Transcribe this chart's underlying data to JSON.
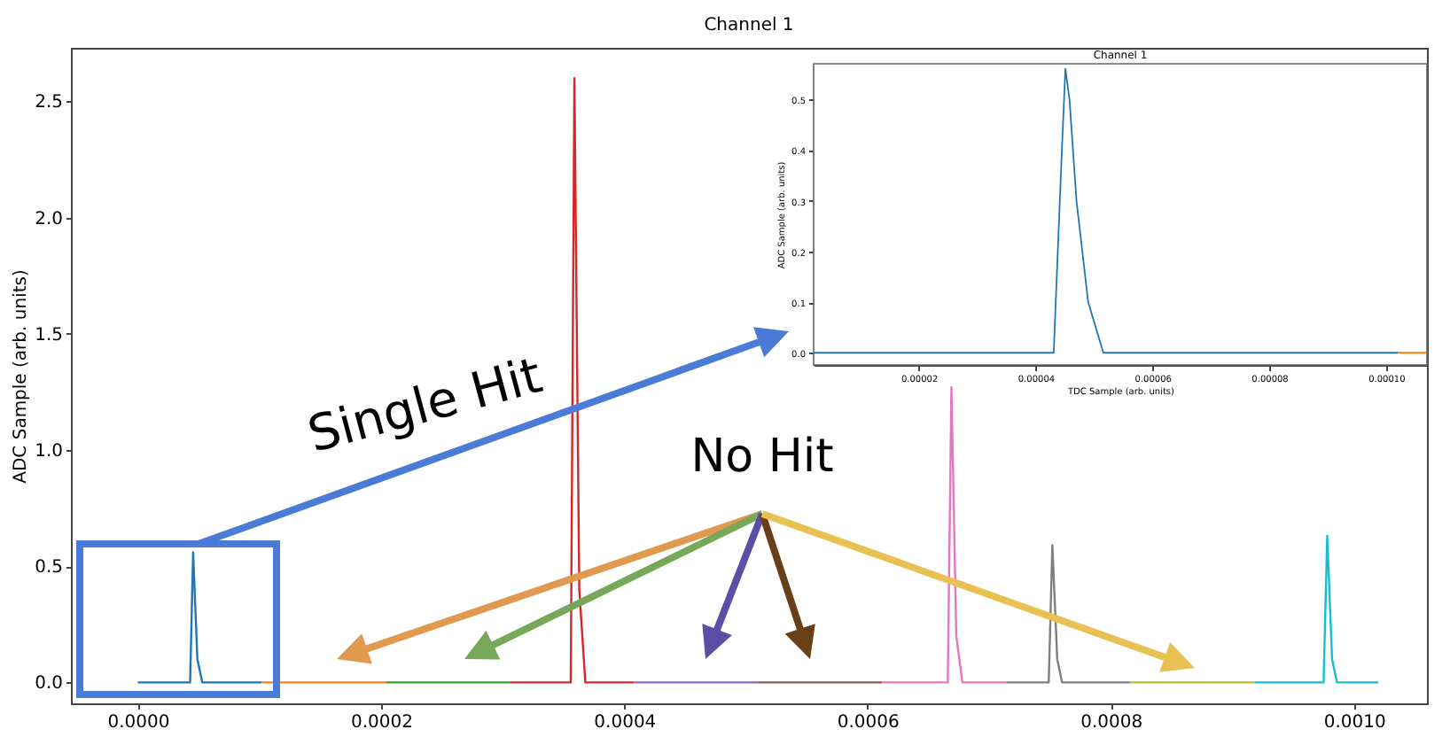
{
  "chart_data": [
    {
      "type": "line",
      "title": "Channel 1",
      "ylabel": "ADC Sample (arb. units)",
      "xlim": [
        -5.5e-05,
        0.00106
      ],
      "ylim": [
        -0.09,
        2.73
      ],
      "xticks": [
        {
          "value": 0,
          "label": "0.0000"
        },
        {
          "value": 0.0002,
          "label": "0.0002"
        },
        {
          "value": 0.0004,
          "label": "0.0004"
        },
        {
          "value": 0.0006,
          "label": "0.0006"
        },
        {
          "value": 0.0008,
          "label": "0.0008"
        },
        {
          "value": 0.001,
          "label": "0.0010"
        }
      ],
      "yticks": [
        {
          "value": 0,
          "label": "0.0"
        },
        {
          "value": 0.5,
          "label": "0.5"
        },
        {
          "value": 1,
          "label": "1.0"
        },
        {
          "value": 1.5,
          "label": "1.5"
        },
        {
          "value": 2,
          "label": "2.0"
        },
        {
          "value": 2.5,
          "label": "2.5"
        }
      ],
      "series": [
        {
          "color": "#1f77b4",
          "x": [
            0,
            4.3e-05,
            4.55e-05,
            4.9e-05,
            5.3e-05,
            0.000102
          ],
          "values": [
            0,
            0,
            0.56,
            0.1,
            0,
            0
          ]
        },
        {
          "color": "#ff7f0e",
          "x": [
            0.000102,
            0.000204
          ],
          "values": [
            0,
            0
          ]
        },
        {
          "color": "#2ca02c",
          "x": [
            0.000204,
            0.000306
          ],
          "values": [
            0,
            0
          ]
        },
        {
          "color": "#d62728",
          "x": [
            0.000306,
            0.000356,
            0.000359,
            0.000363,
            0.000368,
            0.000408
          ],
          "values": [
            0,
            0,
            2.6,
            0.4,
            0,
            0
          ]
        },
        {
          "color": "#9467bd",
          "x": [
            0.000408,
            0.00051
          ],
          "values": [
            0,
            0
          ]
        },
        {
          "color": "#8c564b",
          "x": [
            0.00051,
            0.000612
          ],
          "values": [
            0,
            0
          ]
        },
        {
          "color": "#e377c2",
          "x": [
            0.000612,
            0.000666,
            0.000669,
            0.000673,
            0.000678,
            0.000714
          ],
          "values": [
            0,
            0,
            1.27,
            0.2,
            0,
            0
          ]
        },
        {
          "color": "#7f7f7f",
          "x": [
            0.000714,
            0.000749,
            0.000752,
            0.000756,
            0.00076,
            0.000816
          ],
          "values": [
            0,
            0,
            0.59,
            0.1,
            0,
            0
          ]
        },
        {
          "color": "#bcbd22",
          "x": [
            0.000816,
            0.000918
          ],
          "values": [
            0,
            0
          ]
        },
        {
          "color": "#17becf",
          "x": [
            0.000918,
            0.000975,
            0.000978,
            0.000982,
            0.000986,
            0.00102
          ],
          "values": [
            0,
            0,
            0.63,
            0.1,
            0,
            0
          ]
        }
      ],
      "annotations": [
        "Single Hit",
        "No Hit"
      ]
    },
    {
      "type": "line",
      "title": "Channel 1",
      "xlabel": "TDC Sample (arb. units)",
      "ylabel": "ADC Sample (arb. units)",
      "xlim": [
        2e-06,
        0.000107
      ],
      "ylim": [
        -0.024,
        0.57
      ],
      "xticks": [
        {
          "value": 2e-05,
          "label": "0.00002"
        },
        {
          "value": 4e-05,
          "label": "0.00004"
        },
        {
          "value": 6e-05,
          "label": "0.00006"
        },
        {
          "value": 8e-05,
          "label": "0.00008"
        },
        {
          "value": 0.0001,
          "label": "0.00010"
        }
      ],
      "yticks": [
        {
          "value": 0,
          "label": "0.0"
        },
        {
          "value": 0.1,
          "label": "0.1"
        },
        {
          "value": 0.2,
          "label": "0.2"
        },
        {
          "value": 0.3,
          "label": "0.3"
        },
        {
          "value": 0.4,
          "label": "0.4"
        },
        {
          "value": 0.5,
          "label": "0.5"
        }
      ],
      "series": [
        {
          "color": "#1f77b4",
          "x": [
            2e-06,
            4.31e-05,
            4.45e-05,
            4.51e-05,
            4.58e-05,
            4.7e-05,
            4.9e-05,
            5.16e-05,
            0.000102
          ],
          "values": [
            0,
            0,
            0.4,
            0.56,
            0.5,
            0.3,
            0.1,
            0,
            0
          ]
        },
        {
          "color": "#ff7f0e",
          "x": [
            0.000102,
            0.000107
          ],
          "values": [
            0,
            0
          ]
        }
      ]
    }
  ]
}
